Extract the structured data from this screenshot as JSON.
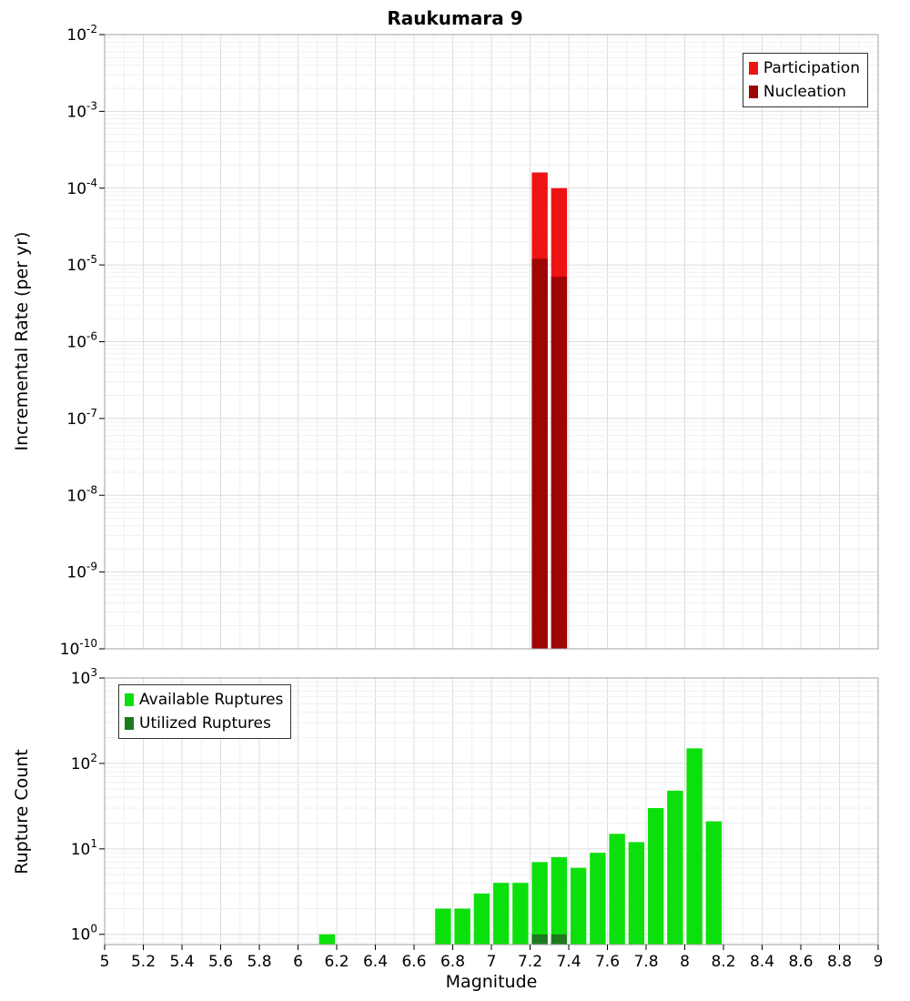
{
  "title": "Raukumara 9",
  "xlabel": "Magnitude",
  "x_ticks": [
    "5",
    "5.2",
    "5.4",
    "5.6",
    "5.8",
    "6",
    "6.2",
    "6.4",
    "6.6",
    "6.8",
    "7",
    "7.2",
    "7.4",
    "7.6",
    "7.8",
    "8",
    "8.2",
    "8.4",
    "8.6",
    "8.8",
    "9"
  ],
  "chart_data": [
    {
      "type": "bar",
      "title": "Raukumara 9",
      "ylabel": "Incremental Rate (per yr)",
      "xlabel": "Magnitude",
      "x_range": [
        5,
        9
      ],
      "y_scale": "log",
      "y_min_exp": -10,
      "y_max_exp": -2,
      "y_tick_exps": [
        -2,
        -3,
        -4,
        -5,
        -6,
        -7,
        -8,
        -9,
        -10
      ],
      "bin_width": 0.1,
      "grid": true,
      "legend_position": "top-right",
      "series": [
        {
          "name": "Participation",
          "color": "#ee1414",
          "x": [
            7.25,
            7.35
          ],
          "values": [
            0.00016,
            0.0001
          ]
        },
        {
          "name": "Nucleation",
          "color": "#9e0505",
          "x": [
            7.25,
            7.35
          ],
          "values": [
            1.2e-05,
            7e-06
          ]
        }
      ]
    },
    {
      "type": "bar",
      "title": "",
      "ylabel": "Rupture Count",
      "xlabel": "Magnitude",
      "x_range": [
        5,
        9
      ],
      "y_scale": "log",
      "y_min_exp": -0.12,
      "y_max_exp": 3,
      "y_tick_exps": [
        3,
        2,
        1,
        0
      ],
      "bin_width": 0.1,
      "grid": true,
      "legend_position": "top-left",
      "series": [
        {
          "name": "Available Ruptures",
          "color": "#0ce00c",
          "x": [
            6.15,
            6.75,
            6.85,
            6.95,
            7.05,
            7.15,
            7.25,
            7.35,
            7.45,
            7.55,
            7.65,
            7.75,
            7.85,
            7.95,
            8.05,
            8.15
          ],
          "values": [
            1,
            2,
            2,
            3,
            4,
            4,
            7,
            8,
            6,
            9,
            15,
            12,
            30,
            48,
            150,
            21
          ]
        },
        {
          "name": "Utilized Ruptures",
          "color": "#1e7a1e",
          "x": [
            7.25,
            7.35
          ],
          "values": [
            1,
            1
          ]
        }
      ]
    }
  ]
}
